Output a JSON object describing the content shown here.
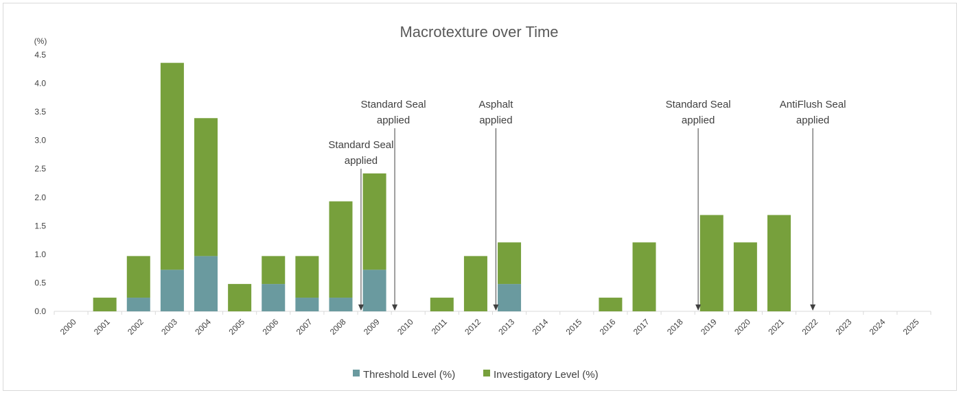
{
  "chart_data": {
    "type": "bar",
    "stacked": true,
    "title": "Macrotexture over Time",
    "ylabel": "(%)",
    "xlabel": "",
    "ylim": [
      0,
      4.5
    ],
    "yticks": [
      "0.0",
      "0.5",
      "1.0",
      "1.5",
      "2.0",
      "2.5",
      "3.0",
      "3.5",
      "4.0",
      "4.5"
    ],
    "categories": [
      "2000",
      "2001",
      "2002",
      "2003",
      "2004",
      "2005",
      "2006",
      "2007",
      "2008",
      "2009",
      "2010",
      "2011",
      "2012",
      "2013",
      "2014",
      "2015",
      "2016",
      "2017",
      "2018",
      "2019",
      "2020",
      "2021",
      "2022",
      "2023",
      "2024",
      "2025"
    ],
    "series": [
      {
        "name": "Threshold Level (%)",
        "color": "#6a9a9f",
        "values": [
          0,
          0,
          0.24,
          0.73,
          0.97,
          0,
          0.48,
          0.24,
          0.24,
          0.73,
          0,
          0,
          0,
          0.48,
          0,
          0,
          0,
          0,
          0,
          0,
          0,
          0,
          0,
          0,
          0,
          0
        ]
      },
      {
        "name": "Investigatory Level (%)",
        "color": "#77a03c",
        "values": [
          0,
          0.24,
          0.73,
          3.63,
          2.42,
          0.48,
          0.49,
          0.73,
          1.69,
          1.69,
          0,
          0.24,
          0.97,
          0.73,
          0,
          0,
          0.24,
          1.21,
          0,
          1.69,
          1.21,
          1.69,
          0,
          0,
          0,
          0
        ]
      }
    ],
    "annotations": [
      {
        "lines": [
          "Standard Seal",
          "applied"
        ],
        "x": 2008.6
      },
      {
        "lines": [
          "Standard Seal",
          "applied"
        ],
        "x": 2009.6
      },
      {
        "lines": [
          "Asphalt",
          "applied"
        ],
        "x": 2012.6
      },
      {
        "lines": [
          "Standard Seal",
          "applied"
        ],
        "x": 2018.6
      },
      {
        "lines": [
          "AntiFlush Seal",
          "applied"
        ],
        "x": 2022.0
      }
    ],
    "legend_position": "bottom",
    "grid": false,
    "axis_color": "#d9d9d9"
  }
}
